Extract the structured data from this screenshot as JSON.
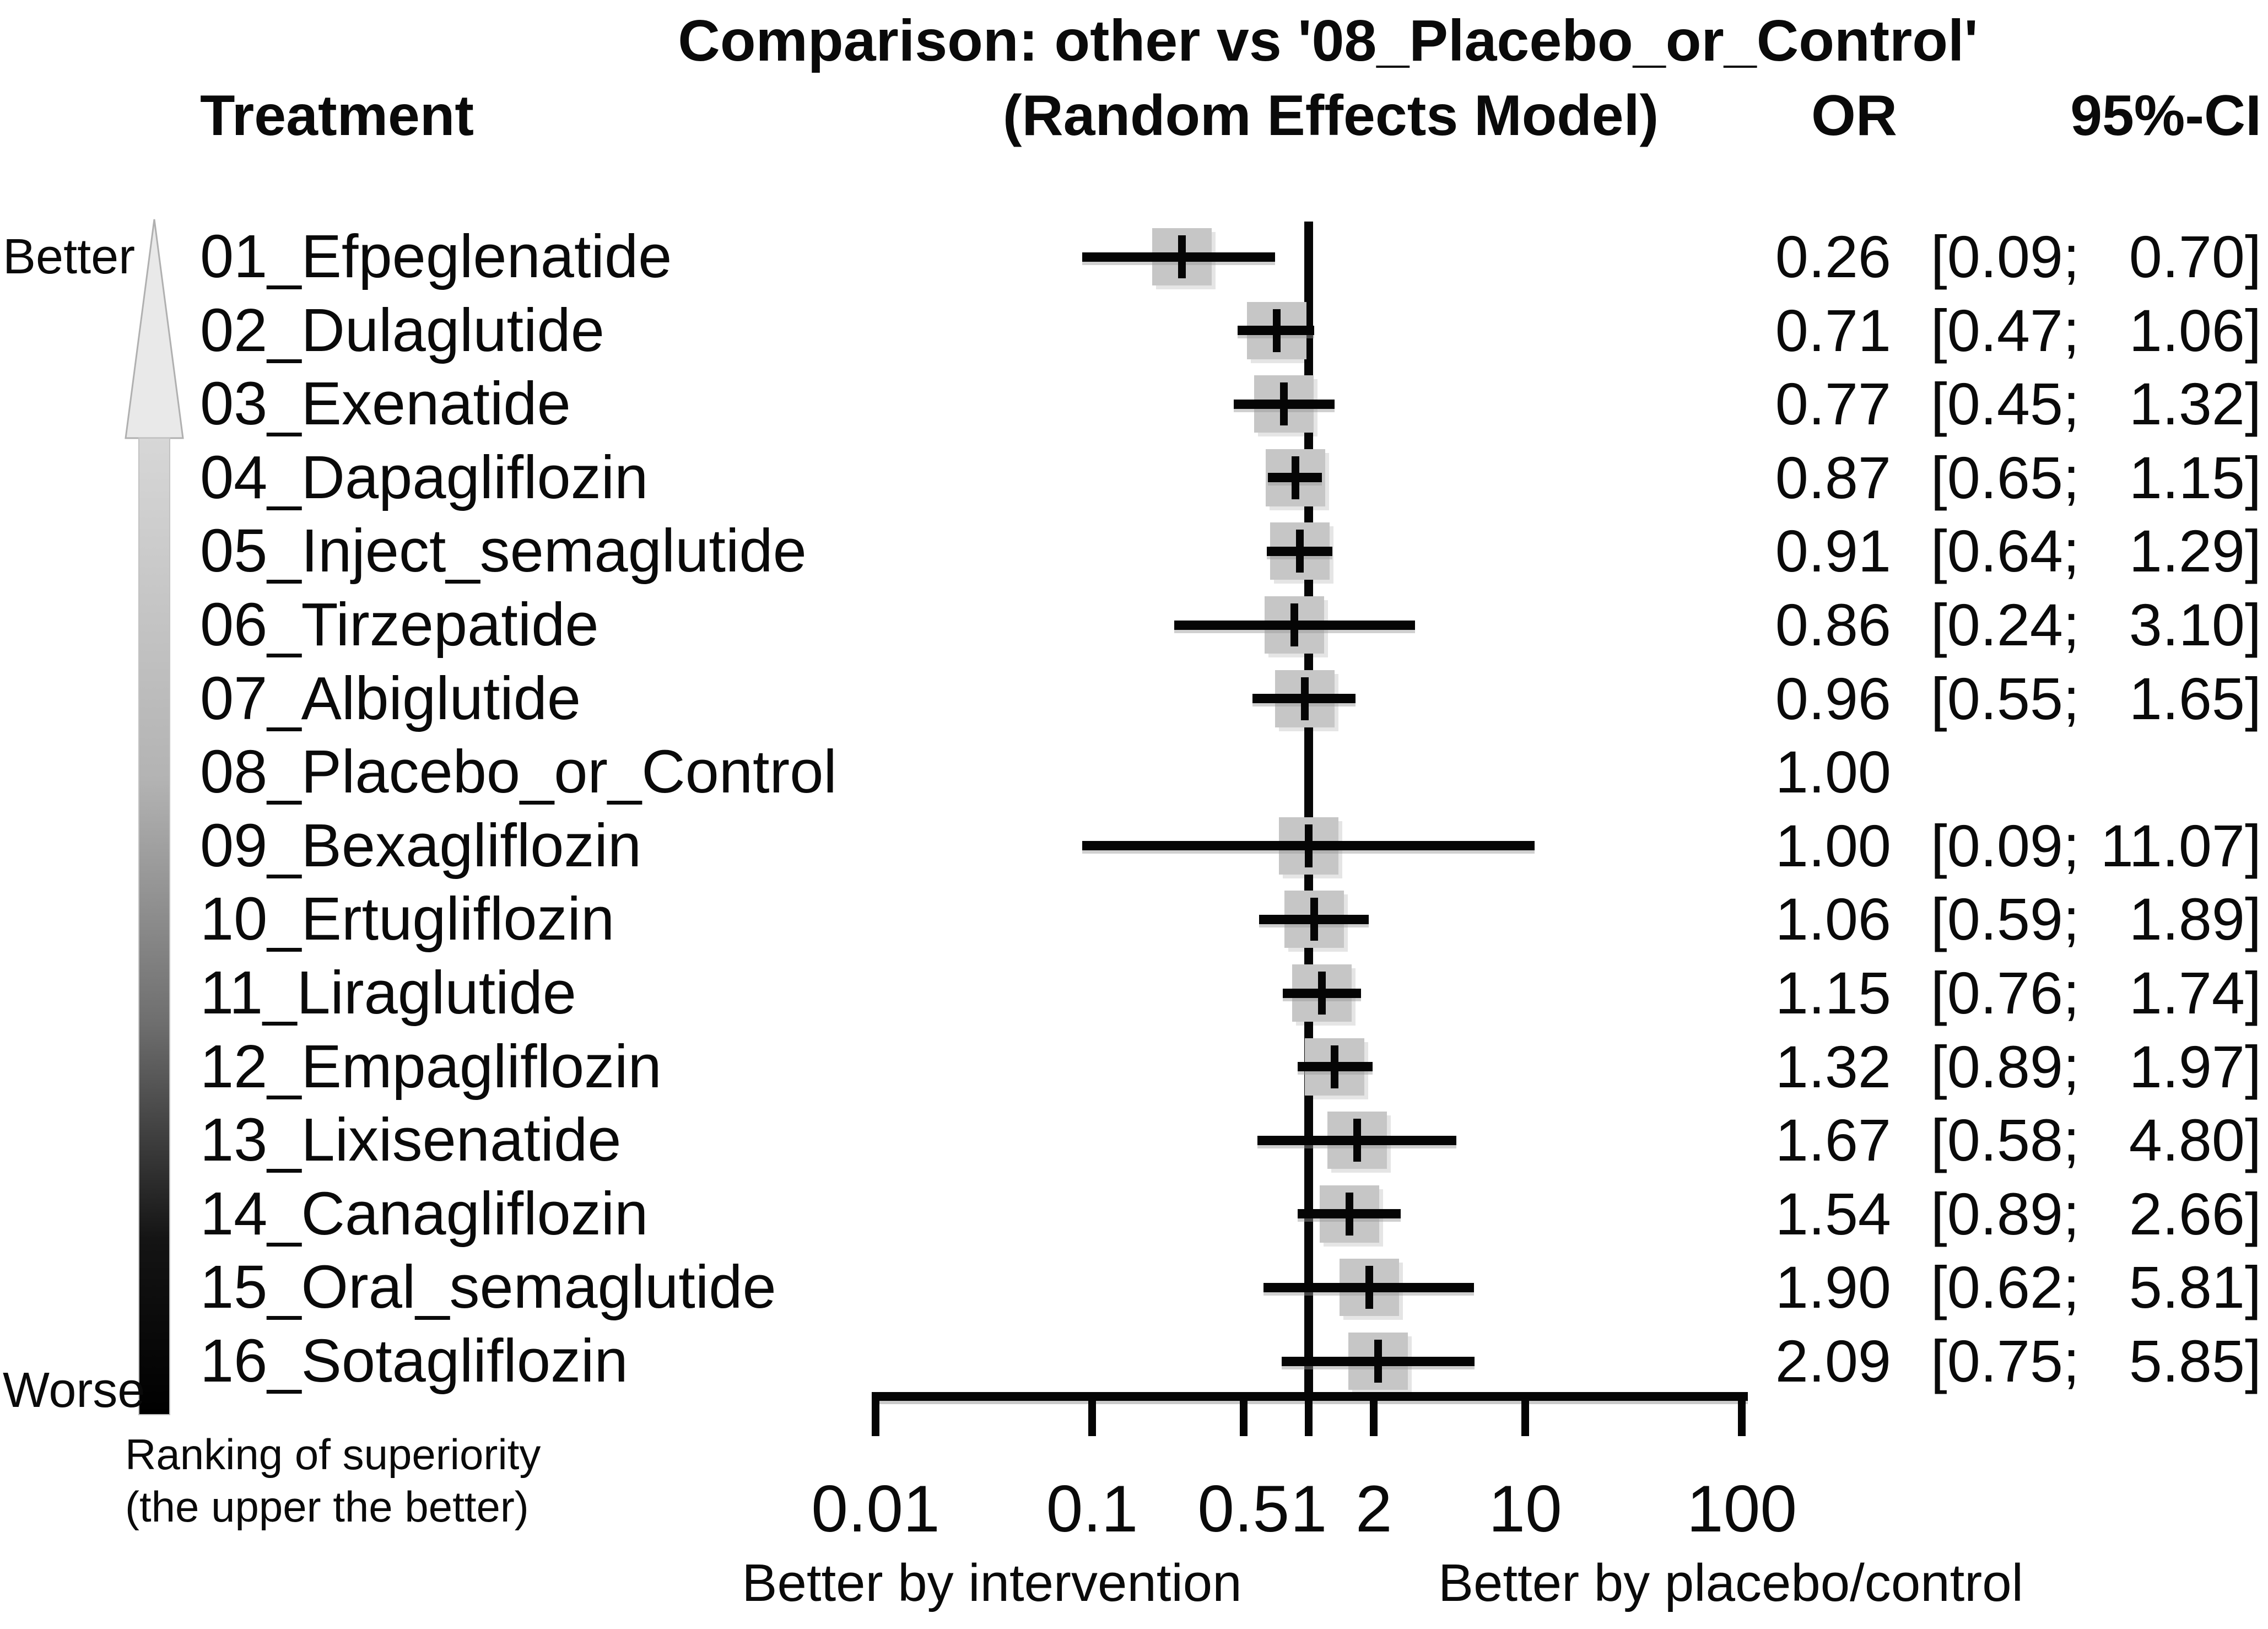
{
  "title": {
    "line1": "Comparison: other vs '08_Placebo_or_Control'",
    "line2": "(Random Effects Model)"
  },
  "columns": {
    "treatment": "Treatment",
    "or": "OR",
    "ci": "95%-CI"
  },
  "side": {
    "better": "Better",
    "worse": "Worse",
    "note_line1": "Ranking of superiority",
    "note_line2": "(the upper the better)"
  },
  "axis": {
    "caption_left": "Better by intervention",
    "caption_right": "Better by placebo/control"
  },
  "colors": {
    "background": "#ffffff",
    "text": "#0a0a0a",
    "square": "#c6c6c6",
    "line": "#050505",
    "shadow": "#969696",
    "arrow_light": "#e9e9e9",
    "arrow_dark": "#000000"
  },
  "chart_data": {
    "type": "scatter",
    "subtype": "forest-plot",
    "title": "Comparison: other vs '08_Placebo_or_Control' (Random Effects Model)",
    "x_scale": "log10",
    "x_range": [
      0.01,
      100
    ],
    "reference_line": 1.0,
    "grid": false,
    "legend": "none",
    "xlabel_left": "Better by intervention",
    "xlabel_right": "Better by placebo/control",
    "ticks": [
      {
        "v": 0.01,
        "label": "0.01"
      },
      {
        "v": 0.1,
        "label": "0.1"
      },
      {
        "v": 0.5,
        "label": "0.5"
      },
      {
        "v": 1,
        "label": "1"
      },
      {
        "v": 2,
        "label": "2"
      },
      {
        "v": 10,
        "label": "10"
      },
      {
        "v": 100,
        "label": "100"
      }
    ],
    "rows": [
      {
        "treatment": "01_Efpeglenatide",
        "or": 0.26,
        "ci_low": 0.09,
        "ci_high": 0.7,
        "or_label": "0.26",
        "ci_lo_label": "[0.09;",
        "ci_hi_label": "0.70]"
      },
      {
        "treatment": "02_Dulaglutide",
        "or": 0.71,
        "ci_low": 0.47,
        "ci_high": 1.06,
        "or_label": "0.71",
        "ci_lo_label": "[0.47;",
        "ci_hi_label": "1.06]"
      },
      {
        "treatment": "03_Exenatide",
        "or": 0.77,
        "ci_low": 0.45,
        "ci_high": 1.32,
        "or_label": "0.77",
        "ci_lo_label": "[0.45;",
        "ci_hi_label": "1.32]"
      },
      {
        "treatment": "04_Dapagliflozin",
        "or": 0.87,
        "ci_low": 0.65,
        "ci_high": 1.15,
        "or_label": "0.87",
        "ci_lo_label": "[0.65;",
        "ci_hi_label": "1.15]"
      },
      {
        "treatment": "05_Inject_semaglutide",
        "or": 0.91,
        "ci_low": 0.64,
        "ci_high": 1.29,
        "or_label": "0.91",
        "ci_lo_label": "[0.64;",
        "ci_hi_label": "1.29]"
      },
      {
        "treatment": "06_Tirzepatide",
        "or": 0.86,
        "ci_low": 0.24,
        "ci_high": 3.1,
        "or_label": "0.86",
        "ci_lo_label": "[0.24;",
        "ci_hi_label": "3.10]"
      },
      {
        "treatment": "07_Albiglutide",
        "or": 0.96,
        "ci_low": 0.55,
        "ci_high": 1.65,
        "or_label": "0.96",
        "ci_lo_label": "[0.55;",
        "ci_hi_label": "1.65]"
      },
      {
        "treatment": "08_Placebo_or_Control",
        "or": 1.0,
        "ci_low": null,
        "ci_high": null,
        "or_label": "1.00",
        "ci_lo_label": "",
        "ci_hi_label": ""
      },
      {
        "treatment": "09_Bexagliflozin",
        "or": 1.0,
        "ci_low": 0.09,
        "ci_high": 11.07,
        "or_label": "1.00",
        "ci_lo_label": "[0.09;",
        "ci_hi_label": "11.07]"
      },
      {
        "treatment": "10_Ertugliflozin",
        "or": 1.06,
        "ci_low": 0.59,
        "ci_high": 1.89,
        "or_label": "1.06",
        "ci_lo_label": "[0.59;",
        "ci_hi_label": "1.89]"
      },
      {
        "treatment": "11_Liraglutide",
        "or": 1.15,
        "ci_low": 0.76,
        "ci_high": 1.74,
        "or_label": "1.15",
        "ci_lo_label": "[0.76;",
        "ci_hi_label": "1.74]"
      },
      {
        "treatment": "12_Empagliflozin",
        "or": 1.32,
        "ci_low": 0.89,
        "ci_high": 1.97,
        "or_label": "1.32",
        "ci_lo_label": "[0.89;",
        "ci_hi_label": "1.97]"
      },
      {
        "treatment": "13_Lixisenatide",
        "or": 1.67,
        "ci_low": 0.58,
        "ci_high": 4.8,
        "or_label": "1.67",
        "ci_lo_label": "[0.58;",
        "ci_hi_label": "4.80]"
      },
      {
        "treatment": "14_Canagliflozin",
        "or": 1.54,
        "ci_low": 0.89,
        "ci_high": 2.66,
        "or_label": "1.54",
        "ci_lo_label": "[0.89;",
        "ci_hi_label": "2.66]"
      },
      {
        "treatment": "15_Oral_semaglutide",
        "or": 1.9,
        "ci_low": 0.62,
        "ci_high": 5.81,
        "or_label": "1.90",
        "ci_lo_label": "[0.62;",
        "ci_hi_label": "5.81]"
      },
      {
        "treatment": "16_Sotagliflozin",
        "or": 2.09,
        "ci_low": 0.75,
        "ci_high": 5.85,
        "or_label": "2.09",
        "ci_lo_label": "[0.75;",
        "ci_hi_label": "5.85]"
      }
    ]
  }
}
